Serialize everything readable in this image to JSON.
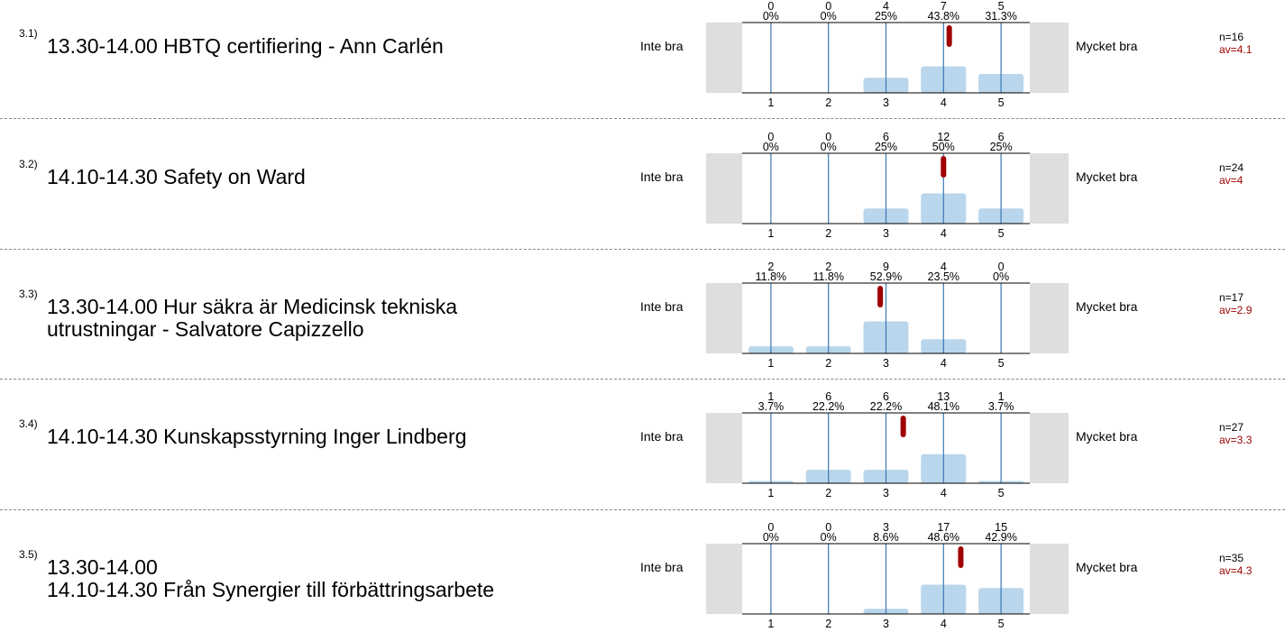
{
  "chart_data": [
    {
      "type": "bar",
      "id": "3.1)",
      "title": "13.30-14.00 HBTQ certifiering - Ann Carlén",
      "left_label": "Inte bra",
      "right_label": "Mycket bra",
      "categories": [
        "1",
        "2",
        "3",
        "4",
        "5"
      ],
      "counts": [
        "0",
        "0",
        "4",
        "7",
        "5"
      ],
      "percents": [
        "0%",
        "0%",
        "25%",
        "43.8%",
        "31.3%"
      ],
      "values": [
        0,
        0,
        25,
        43.8,
        31.3
      ],
      "n_label": "n=16",
      "av_label": "av=4.1",
      "average": 4.1
    },
    {
      "type": "bar",
      "id": "3.2)",
      "title": "14.10-14.30 Safety on Ward",
      "left_label": "Inte bra",
      "right_label": "Mycket bra",
      "categories": [
        "1",
        "2",
        "3",
        "4",
        "5"
      ],
      "counts": [
        "0",
        "0",
        "6",
        "12",
        "6"
      ],
      "percents": [
        "0%",
        "0%",
        "25%",
        "50%",
        "25%"
      ],
      "values": [
        0,
        0,
        25,
        50,
        25
      ],
      "n_label": "n=24",
      "av_label": "av=4",
      "average": 4.0
    },
    {
      "type": "bar",
      "id": "3.3)",
      "title": "13.30-14.00 Hur säkra är Medicinsk tekniska utrustningar - Salvatore Capizzello",
      "left_label": "Inte bra",
      "right_label": "Mycket bra",
      "categories": [
        "1",
        "2",
        "3",
        "4",
        "5"
      ],
      "counts": [
        "2",
        "2",
        "9",
        "4",
        "0"
      ],
      "percents": [
        "11.8%",
        "11.8%",
        "52.9%",
        "23.5%",
        "0%"
      ],
      "values": [
        11.8,
        11.8,
        52.9,
        23.5,
        0
      ],
      "n_label": "n=17",
      "av_label": "av=2.9",
      "average": 2.9
    },
    {
      "type": "bar",
      "id": "3.4)",
      "title": "14.10-14.30 Kunskapsstyrning Inger Lindberg",
      "left_label": "Inte bra",
      "right_label": "Mycket bra",
      "categories": [
        "1",
        "2",
        "3",
        "4",
        "5"
      ],
      "counts": [
        "1",
        "6",
        "6",
        "13",
        "1"
      ],
      "percents": [
        "3.7%",
        "22.2%",
        "22.2%",
        "48.1%",
        "3.7%"
      ],
      "values": [
        3.7,
        22.2,
        22.2,
        48.1,
        3.7
      ],
      "n_label": "n=27",
      "av_label": "av=3.3",
      "average": 3.3
    },
    {
      "type": "bar",
      "id": "3.5)",
      "title": "13.30-14.00\n14.10-14.30 Från Synergier till förbättringsarbete",
      "left_label": "Inte bra",
      "right_label": "Mycket bra",
      "categories": [
        "1",
        "2",
        "3",
        "4",
        "5"
      ],
      "counts": [
        "0",
        "0",
        "3",
        "17",
        "15"
      ],
      "percents": [
        "0%",
        "0%",
        "8.6%",
        "48.6%",
        "42.9%"
      ],
      "values": [
        0,
        0,
        8.6,
        48.6,
        42.9
      ],
      "n_label": "n=35",
      "av_label": "av=4.3",
      "average": 4.3
    }
  ]
}
